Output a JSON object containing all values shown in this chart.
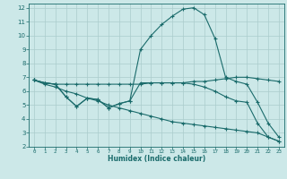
{
  "xlabel": "Humidex (Indice chaleur)",
  "bg_color": "#cce8e8",
  "line_color": "#1a6b6b",
  "grid_color": "#aacccc",
  "xlim": [
    -0.5,
    23.5
  ],
  "ylim": [
    2,
    12.3
  ],
  "xticks": [
    0,
    1,
    2,
    3,
    4,
    5,
    6,
    7,
    8,
    9,
    10,
    11,
    12,
    13,
    14,
    15,
    16,
    17,
    18,
    19,
    20,
    21,
    22,
    23
  ],
  "yticks": [
    2,
    3,
    4,
    5,
    6,
    7,
    8,
    9,
    10,
    11,
    12
  ],
  "line1_x": [
    0,
    1,
    2,
    3,
    4,
    5,
    6,
    7,
    8,
    9,
    10,
    11,
    12,
    13,
    14,
    15,
    16,
    17,
    18,
    19,
    20,
    21,
    22,
    23
  ],
  "line1_y": [
    6.8,
    6.6,
    6.5,
    6.5,
    6.5,
    6.5,
    6.5,
    6.5,
    6.5,
    6.5,
    6.5,
    6.6,
    6.6,
    6.6,
    6.6,
    6.7,
    6.7,
    6.8,
    6.9,
    7.0,
    7.0,
    6.9,
    6.8,
    6.7
  ],
  "line2_x": [
    0,
    1,
    2,
    3,
    4,
    5,
    6,
    7,
    8,
    9,
    10,
    11,
    12,
    13,
    14,
    15,
    16,
    17,
    18,
    19,
    20,
    21,
    22,
    23
  ],
  "line2_y": [
    6.8,
    6.6,
    6.5,
    5.6,
    4.9,
    5.5,
    5.4,
    4.8,
    5.1,
    5.3,
    6.6,
    6.6,
    6.6,
    6.6,
    6.6,
    6.5,
    6.3,
    6.0,
    5.6,
    5.3,
    5.2,
    3.7,
    2.7,
    2.4
  ],
  "line3_x": [
    0,
    1,
    2,
    3,
    4,
    5,
    6,
    7,
    8,
    9,
    10,
    11,
    12,
    13,
    14,
    15,
    16,
    17,
    18,
    19,
    20,
    21,
    22,
    23
  ],
  "line3_y": [
    6.8,
    6.6,
    6.5,
    5.6,
    4.9,
    5.5,
    5.4,
    4.8,
    5.1,
    5.3,
    9.0,
    10.0,
    10.8,
    11.4,
    11.9,
    12.0,
    11.5,
    9.8,
    7.0,
    6.7,
    6.5,
    5.2,
    3.7,
    2.7
  ],
  "line4_x": [
    0,
    1,
    2,
    3,
    4,
    5,
    6,
    7,
    8,
    9,
    10,
    11,
    12,
    13,
    14,
    15,
    16,
    17,
    18,
    19,
    20,
    21,
    22,
    23
  ],
  "line4_y": [
    6.8,
    6.5,
    6.3,
    6.0,
    5.8,
    5.5,
    5.3,
    5.0,
    4.8,
    4.6,
    4.4,
    4.2,
    4.0,
    3.8,
    3.7,
    3.6,
    3.5,
    3.4,
    3.3,
    3.2,
    3.1,
    3.0,
    2.7,
    2.4
  ]
}
